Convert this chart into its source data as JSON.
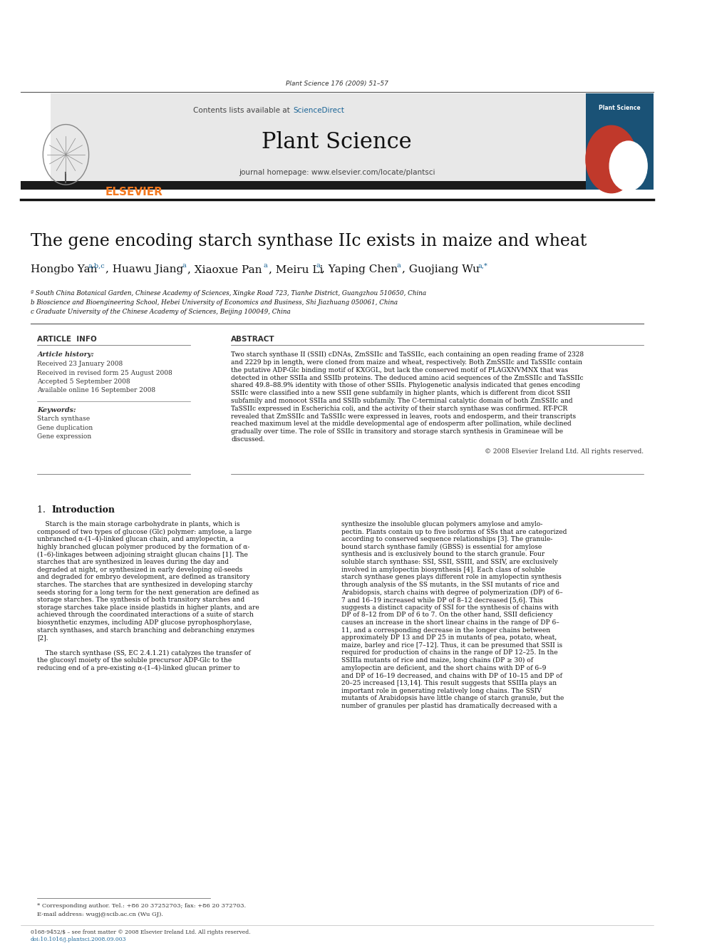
{
  "page_width": 9.92,
  "page_height": 13.23,
  "bg_color": "#ffffff",
  "journal_ref": "Plant Science 176 (2009) 51–57",
  "journal_name": "Plant Science",
  "contents_text": "Contents lists available at ScienceDirect",
  "sciencedirect_color": "#1a6496",
  "journal_homepage": "journal homepage: www.elsevier.com/locate/plantsci",
  "header_bg": "#e8e8e8",
  "dark_bar_color": "#1a1a1a",
  "elsevier_color": "#f47920",
  "article_title": "The gene encoding starch synthase IIc exists in maize and wheat",
  "article_info_header": "ARTICLE  INFO",
  "abstract_header": "ABSTRACT",
  "article_history_label": "Article history:",
  "received": "Received 23 January 2008",
  "revised": "Received in revised form 25 August 2008",
  "accepted": "Accepted 5 September 2008",
  "available": "Available online 16 September 2008",
  "keywords_label": "Keywords:",
  "kw1": "Starch synthase",
  "kw2": "Gene duplication",
  "kw3": "Gene expression",
  "copyright": "© 2008 Elsevier Ireland Ltd. All rights reserved.",
  "footnote1": "* Corresponding author. Tel.: +86 20 37252703; fax: +86 20 372703.",
  "footnote2": "E-mail address: wugj@scib.ac.cn (Wu GJ).",
  "footer1": "0168-9452/$ – see front matter © 2008 Elsevier Ireland Ltd. All rights reserved.",
  "footer2": "doi:10.1016/j.plantsci.2008.09.003",
  "affil_a": "ª South China Botanical Garden, Chinese Academy of Sciences, Xingke Road 723, Tianhe District, Guangzhou 510650, China",
  "affil_b": "b Bioscience and Bioengineering School, Hebei University of Economics and Business, Shi Jiazhuang 050061, China",
  "affil_c": "c Graduate University of the Chinese Academy of Sciences, Beijing 100049, China",
  "abstract_lines": [
    "Two starch synthase II (SSII) cDNAs, ZmSSIIc and TaSSIIc, each containing an open reading frame of 2328",
    "and 2229 bp in length, were cloned from maize and wheat, respectively. Both ZmSSIIc and TaSSIIc contain",
    "the putative ADP-Glc binding motif of KXGGL, but lack the conserved motif of PLAGXNVMNX that was",
    "detected in other SSIIa and SSIIb proteins. The deduced amino acid sequences of the ZmSSIIc and TaSSIIc",
    "shared 49.8–88.9% identity with those of other SSIIs. Phylogenetic analysis indicated that genes encoding",
    "SSIIc were classified into a new SSII gene subfamily in higher plants, which is different from dicot SSII",
    "subfamily and monocot SSIIa and SSIIb subfamily. The C-terminal catalytic domain of both ZmSSIIc and",
    "TaSSIIc expressed in Escherichia coli, and the activity of their starch synthase was confirmed. RT-PCR",
    "revealed that ZmSSIIc and TaSSIIc were expressed in leaves, roots and endosperm, and their transcripts",
    "reached maximum level at the middle developmental age of endosperm after pollination, while declined",
    "gradually over time. The role of SSIIc in transitory and storage starch synthesis in Gramineae will be",
    "discussed."
  ],
  "intro_col1_lines": [
    "    Starch is the main storage carbohydrate in plants, which is",
    "composed of two types of glucose (Glc) polymer: amylose, a large",
    "unbranched α-(1–4)-linked glucan chain, and amylopectin, a",
    "highly branched glucan polymer produced by the formation of α-",
    "(1–6)-linkages between adjoining straight glucan chains [1]. The",
    "starches that are synthesized in leaves during the day and",
    "degraded at night, or synthesized in early developing oil-seeds",
    "and degraded for embryo development, are defined as transitory",
    "starches. The starches that are synthesized in developing starchy",
    "seeds storing for a long term for the next generation are defined as",
    "storage starches. The synthesis of both transitory starches and",
    "storage starches take place inside plastids in higher plants, and are",
    "achieved through the coordinated interactions of a suite of starch",
    "biosynthetic enzymes, including ADP glucose pyrophosphorylase,",
    "starch synthases, and starch branching and debranching enzymes",
    "[2].",
    "",
    "    The starch synthase (SS, EC 2.4.1.21) catalyzes the transfer of",
    "the glucosyl moiety of the soluble precursor ADP-Glc to the",
    "reducing end of a pre-existing α-(1–4)-linked glucan primer to"
  ],
  "intro_col2_lines": [
    "synthesize the insoluble glucan polymers amylose and amylo-",
    "pectin. Plants contain up to five isoforms of SSs that are categorized",
    "according to conserved sequence relationships [3]. The granule-",
    "bound starch synthase family (GBSS) is essential for amylose",
    "synthesis and is exclusively bound to the starch granule. Four",
    "soluble starch synthase: SSI, SSII, SSIII, and SSIV, are exclusively",
    "involved in amylopectin biosynthesis [4]. Each class of soluble",
    "starch synthase genes plays different role in amylopectin synthesis",
    "through analysis of the SS mutants, in the SSI mutants of rice and",
    "Arabidopsis, starch chains with degree of polymerization (DP) of 6–",
    "7 and 16–19 increased while DP of 8–12 decreased [5,6]. This",
    "suggests a distinct capacity of SSI for the synthesis of chains with",
    "DP of 8–12 from DP of 6 to 7. On the other hand, SSII deficiency",
    "causes an increase in the short linear chains in the range of DP 6–",
    "11, and a corresponding decrease in the longer chains between",
    "approximately DP 13 and DP 25 in mutants of pea, potato, wheat,",
    "maize, barley and rice [7–12]. Thus, it can be presumed that SSII is",
    "required for production of chains in the range of DP 12–25. In the",
    "SSIIIa mutants of rice and maize, long chains (DP ≥ 30) of",
    "amylopectin are deficient, and the short chains with DP of 6–9",
    "and DP of 16–19 decreased, and chains with DP of 10–15 and DP of",
    "20–25 increased [13,14]. This result suggests that SSIIIa plays an",
    "important role in generating relatively long chains. The SSIV",
    "mutants of Arabidopsis have little change of starch granule, but the",
    "number of granules per plastid has dramatically decreased with a"
  ]
}
